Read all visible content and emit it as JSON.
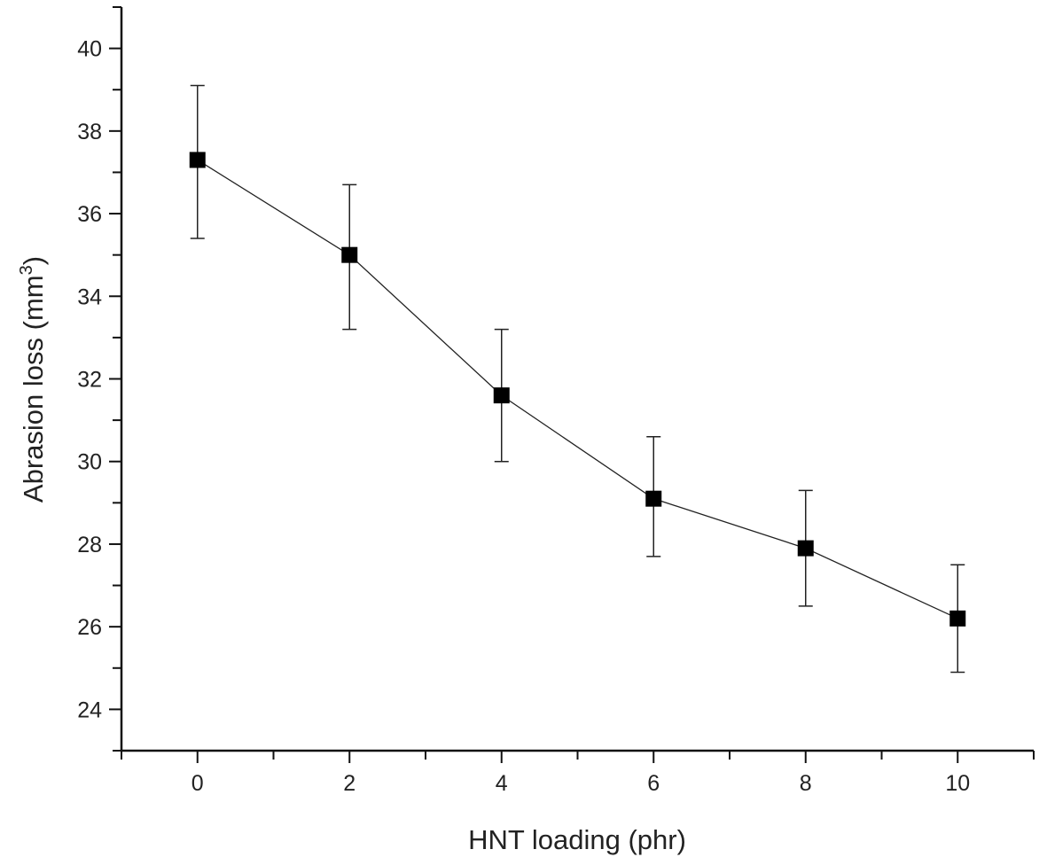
{
  "chart_data": {
    "type": "line",
    "title": "",
    "xlabel": "HNT loading (phr)",
    "ylabel_main": "Abrasion loss (mm",
    "ylabel_sup": "3",
    "ylabel_close": ")",
    "xlim": [
      -1,
      11
    ],
    "ylim": [
      23,
      41
    ],
    "xticks": [
      0,
      2,
      4,
      6,
      8,
      10
    ],
    "yticks": [
      24,
      26,
      28,
      30,
      32,
      34,
      36,
      38,
      40
    ],
    "xtick_labels": [
      "0",
      "2",
      "4",
      "6",
      "8",
      "10"
    ],
    "ytick_labels": [
      "24",
      "26",
      "28",
      "30",
      "32",
      "34",
      "36",
      "38",
      "40"
    ],
    "grid": false,
    "marker": "square",
    "color": "#000000",
    "series": [
      {
        "x": [
          0,
          2,
          4,
          6,
          8,
          10
        ],
        "y": [
          37.3,
          35.0,
          31.6,
          29.1,
          27.9,
          26.2
        ],
        "error_low": [
          35.4,
          33.2,
          30.0,
          27.7,
          26.5,
          24.9
        ],
        "error_high": [
          39.1,
          36.7,
          33.2,
          30.6,
          29.3,
          27.5
        ]
      }
    ]
  }
}
